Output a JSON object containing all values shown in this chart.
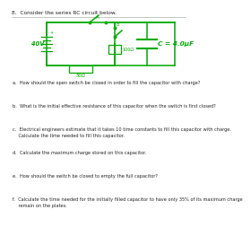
{
  "title": "8.  Consider the series RC circuit below.",
  "circuit": {
    "battery_label": "40V",
    "resistor1_label": "50Ω",
    "resistor2_label": "100Ω",
    "capacitor_label": "C = 4.0μF",
    "switch_label_a": "A",
    "switch_label_b": "B"
  },
  "questions": [
    "a.  How should the open switch be closed in order to fill the capacitor with charge?",
    "b.  What is the initial effective resistance of this capacitor when the switch is first closed?",
    "c.  Electrical engineers estimate that it takes 10 time constants to fill this capacitor with charge.\n    Calculate the time needed to fill this capacitor.",
    "d.  Calculate the maximum charge stored on this capacitor.",
    "e.  How should the switch be closed to empty the full capacitor?",
    "f.  Calculate the time needed for the initially filled capacitor to have only 35% of its maximum charge\n    remain on the plates."
  ],
  "line_color": "#00aa00",
  "text_color": "#222222",
  "bg_color": "#ffffff",
  "font_size": 3.8,
  "title_font_size": 4.2
}
